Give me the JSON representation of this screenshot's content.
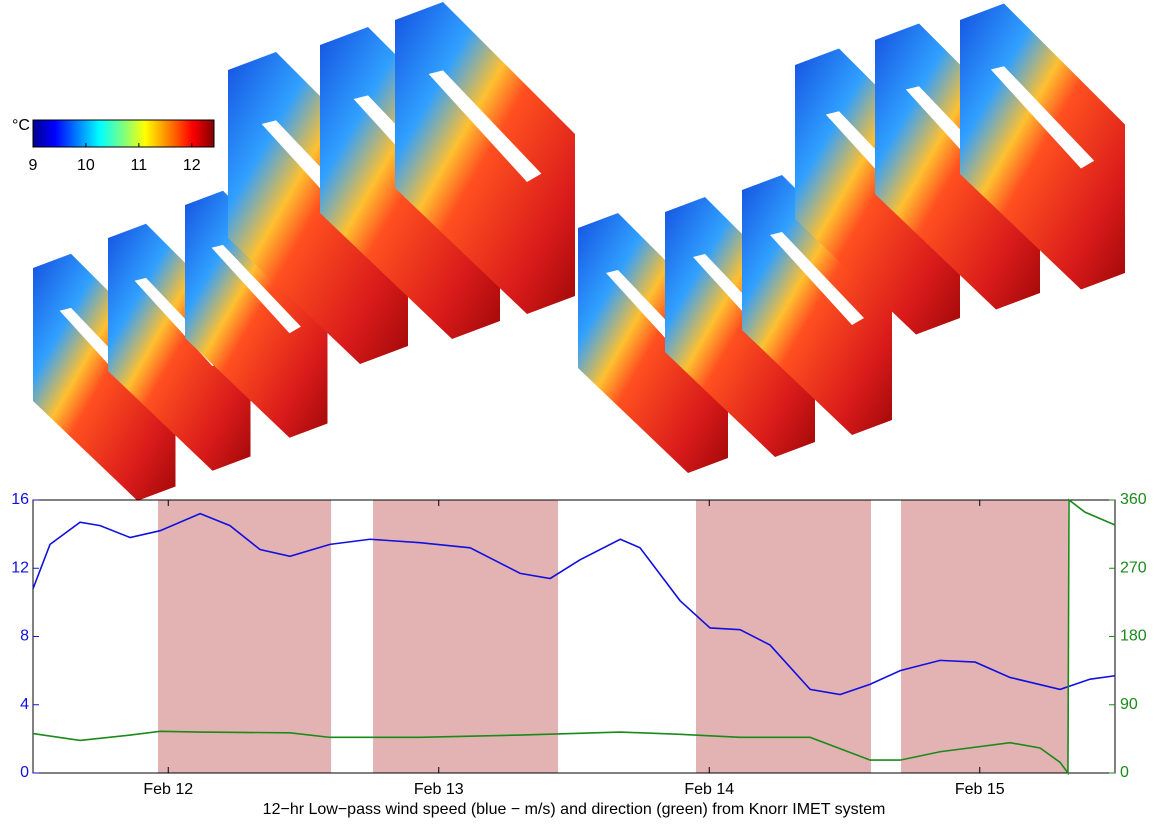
{
  "chart_data": {
    "type": "line",
    "title": "12−hr Low−pass wind speed (blue − m/s) and direction (green) from Knorr IMET system",
    "xlim": [
      11.5,
      15.5
    ],
    "xticks": [
      {
        "value": 12,
        "label": "Feb 12"
      },
      {
        "value": 13,
        "label": "Feb 13"
      },
      {
        "value": 14,
        "label": "Feb 14"
      },
      {
        "value": 15,
        "label": "Feb 15"
      }
    ],
    "ylim": [
      0,
      16
    ],
    "yticks": [
      0,
      4,
      8,
      12,
      16
    ],
    "y2lim": [
      0,
      360
    ],
    "y2ticks": [
      0,
      90,
      180,
      270,
      360
    ],
    "shaded_spans": [
      [
        11.962,
        12.602
      ],
      [
        12.757,
        13.441
      ],
      [
        13.951,
        14.598
      ],
      [
        14.709,
        15.326
      ]
    ],
    "shade_color": "#e3b3b3",
    "series": [
      {
        "color": "#1010e0",
        "axis": "y",
        "x": [
          11.5,
          11.563,
          11.674,
          11.748,
          11.859,
          11.97,
          12.118,
          12.228,
          12.339,
          12.45,
          12.598,
          12.746,
          12.931,
          13.116,
          13.301,
          13.412,
          13.523,
          13.671,
          13.744,
          13.892,
          14.003,
          14.114,
          14.225,
          14.373,
          14.484,
          14.595,
          14.706,
          14.853,
          14.983,
          15.112,
          15.297,
          15.408,
          15.5
        ],
        "values": [
          10.8,
          13.4,
          14.7,
          14.5,
          13.8,
          14.2,
          15.2,
          14.5,
          13.1,
          12.7,
          13.4,
          13.7,
          13.5,
          13.2,
          11.7,
          11.4,
          12.5,
          13.7,
          13.2,
          10.1,
          8.5,
          8.4,
          7.5,
          4.9,
          4.6,
          5.2,
          6.0,
          6.6,
          6.5,
          5.6,
          4.9,
          5.5,
          5.7
        ]
      },
      {
        "color": "#1a8a1a",
        "axis": "y2",
        "x": [
          11.5,
          11.674,
          11.859,
          11.97,
          12.118,
          12.45,
          12.598,
          12.931,
          13.301,
          13.671,
          13.892,
          14.114,
          14.373,
          14.595,
          14.706,
          14.853,
          15.112,
          15.223,
          15.297,
          15.326,
          15.33,
          15.389,
          15.5
        ],
        "values": [
          52,
          43,
          50,
          55,
          54,
          53,
          47,
          47,
          50,
          54,
          51,
          47,
          47,
          17,
          17,
          28,
          40,
          33,
          14,
          0,
          360,
          344,
          327
        ]
      }
    ],
    "colorbar": {
      "label": "°C",
      "lim": [
        9,
        12.42
      ],
      "ticks": [
        9,
        10,
        11,
        12
      ]
    }
  }
}
